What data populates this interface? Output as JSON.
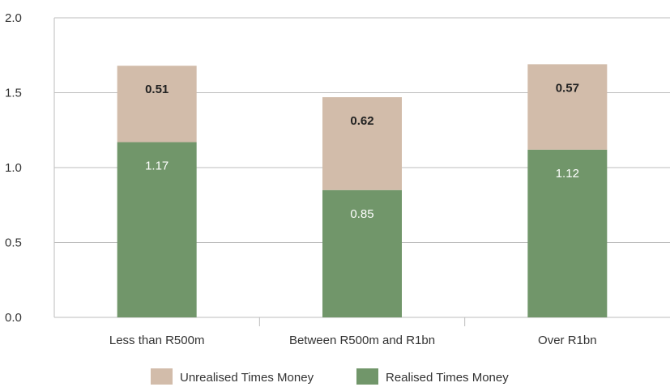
{
  "chart_data": {
    "type": "bar",
    "stacked": true,
    "categories": [
      "Less than R500m",
      "Between R500m and R1bn",
      "Over R1bn"
    ],
    "series": [
      {
        "name": "Realised Times Money",
        "values": [
          1.17,
          0.85,
          1.12
        ],
        "color": "#71966a",
        "label_color": "#ffffff"
      },
      {
        "name": "Unrealised Times Money",
        "values": [
          0.51,
          0.62,
          0.57
        ],
        "color": "#d2bcaa",
        "label_color": "#222222"
      }
    ],
    "data_labels": [
      [
        "1.17",
        "0.85",
        "1.12"
      ],
      [
        "0.51",
        "0.62",
        "0.57"
      ]
    ],
    "y_ticks": [
      "0.0",
      "0.5",
      "1.0",
      "1.5",
      "2.0"
    ],
    "ylim": [
      0,
      2.0
    ],
    "grid": true,
    "legend": {
      "position": "bottom",
      "items": [
        "Unrealised Times Money",
        "Realised Times Money"
      ]
    }
  }
}
